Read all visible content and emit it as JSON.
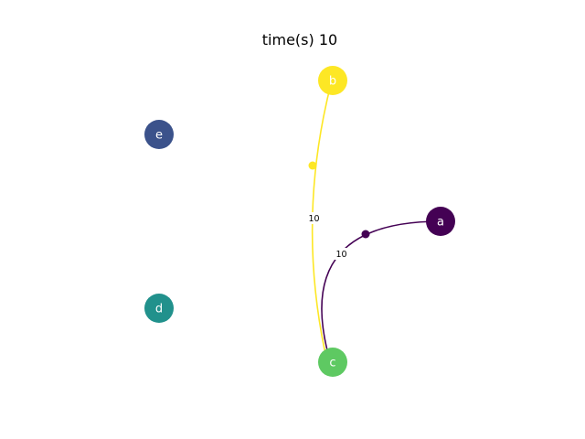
{
  "title": "time(s) 10",
  "nodes": [
    {
      "id": "a",
      "label": "a",
      "color": "#440154"
    },
    {
      "id": "b",
      "label": "b",
      "color": "#fde725"
    },
    {
      "id": "c",
      "label": "c",
      "color": "#5ec962"
    },
    {
      "id": "d",
      "label": "d",
      "color": "#21918c"
    },
    {
      "id": "e",
      "label": "e",
      "color": "#3b528b"
    }
  ],
  "edges": [
    {
      "from": "b",
      "to": "c",
      "label": "10",
      "color": "#fde725"
    },
    {
      "from": "a",
      "to": "c",
      "label": "10",
      "color": "#440154"
    }
  ]
}
